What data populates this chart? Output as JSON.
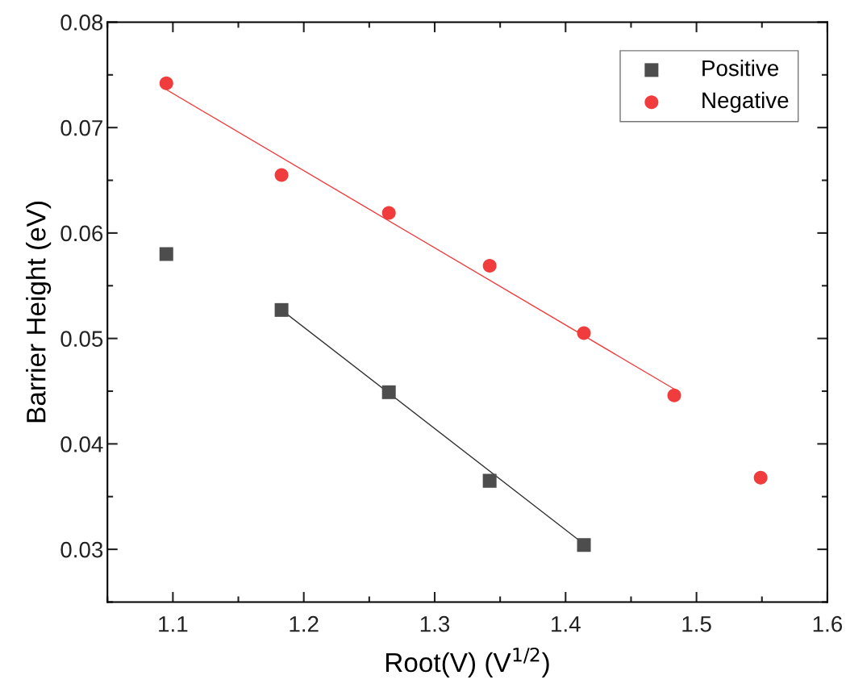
{
  "chart_data": {
    "type": "scatter",
    "xlabel": "Root(V) (V$^{1/2}$)",
    "ylabel": "Barrier Height (eV)",
    "xlim": [
      1.05,
      1.6
    ],
    "xticks": [
      1.1,
      1.2,
      1.3,
      1.4,
      1.5,
      1.6
    ],
    "ylim": [
      0.025,
      0.08
    ],
    "yticks": [
      0.03,
      0.04,
      0.05,
      0.06,
      0.07,
      0.08
    ],
    "grid": false,
    "legend": "top right",
    "series": [
      {
        "name": "Positive",
        "color": "#4d4d4d",
        "marker": "square",
        "x": [
          1.095,
          1.183,
          1.265,
          1.342,
          1.414
        ],
        "values": [
          0.058,
          0.0527,
          0.0449,
          0.0365,
          0.0304
        ]
      },
      {
        "name": "Negative",
        "color": "#f03c3c",
        "marker": "circle",
        "x": [
          1.095,
          1.183,
          1.265,
          1.342,
          1.414,
          1.483,
          1.549
        ],
        "values": [
          0.0742,
          0.0655,
          0.0619,
          0.0569,
          0.0505,
          0.0446,
          0.0368
        ]
      },
      {
        "type": "line",
        "color": "#f03c3c",
        "marker": "none",
        "x": [
          1.095,
          1.483
        ],
        "values": [
          0.0736,
          0.0452
        ]
      },
      {
        "type": "line",
        "color": "#333333",
        "marker": "none",
        "x": [
          1.183,
          1.414
        ],
        "values": [
          0.0527,
          0.0305
        ]
      }
    ]
  }
}
